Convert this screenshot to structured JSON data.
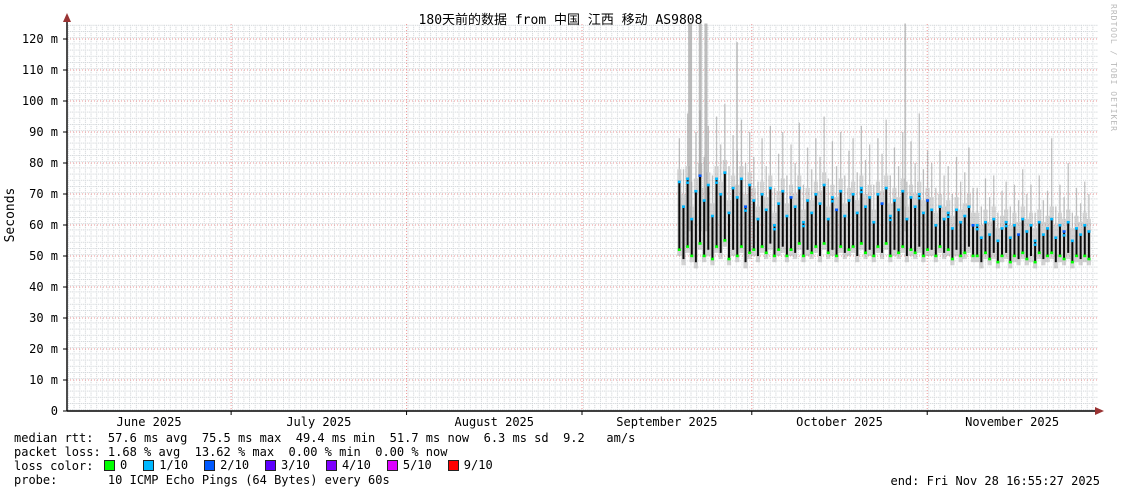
{
  "header": {
    "title": "180天前的数据 from 中国 江西 移动 AS9808"
  },
  "watermark": "RRDTOOL / TOBI OETIKER",
  "chart_data": {
    "type": "smokeping_latency_smoke_chart",
    "title": "180天前的数据 from 中国 江西 移动 AS9808",
    "ylabel": "Seconds",
    "ylim": [
      0,
      125
    ],
    "y_unit": "ms",
    "grid": "dotted minor grid, red dashed major lines every 10 ms",
    "y_ticks": [
      {
        "v": 0,
        "label": "0"
      },
      {
        "v": 10,
        "label": "10 m"
      },
      {
        "v": 20,
        "label": "20 m"
      },
      {
        "v": 30,
        "label": "30 m"
      },
      {
        "v": 40,
        "label": "40 m"
      },
      {
        "v": 50,
        "label": "50 m"
      },
      {
        "v": 60,
        "label": "60 m"
      },
      {
        "v": 70,
        "label": "70 m"
      },
      {
        "v": 80,
        "label": "80 m"
      },
      {
        "v": 90,
        "label": "90 m"
      },
      {
        "v": 100,
        "label": "100 m"
      },
      {
        "v": 110,
        "label": "110 m"
      },
      {
        "v": 120,
        "label": "120 m"
      }
    ],
    "x_axis": {
      "unit": "days since 2025-06-01",
      "range": [
        1,
        183
      ],
      "months": [
        {
          "label": "June 2025",
          "start_day": 0,
          "mid_day": 15.5,
          "line": false
        },
        {
          "label": "July 2025",
          "start_day": 30,
          "mid_day": 45.5,
          "line": true
        },
        {
          "label": "August 2025",
          "start_day": 61,
          "mid_day": 76.5,
          "line": true
        },
        {
          "label": "September 2025",
          "start_day": 92,
          "mid_day": 107,
          "line": true
        },
        {
          "label": "October 2025",
          "start_day": 122,
          "mid_day": 137.5,
          "line": true
        },
        {
          "label": "November 2025",
          "start_day": 153,
          "mid_day": 168,
          "line": true
        }
      ]
    },
    "series": {
      "note": "sampled smoke/median values in ms, data visible only from ~Sep 18 to Nov 28",
      "day_start": 109.2,
      "day_step": 0.731,
      "median_hi": [
        74,
        66,
        75,
        62,
        71,
        76,
        68,
        73,
        63,
        75,
        70,
        77,
        64,
        72,
        69,
        75,
        66,
        73,
        68,
        62,
        70,
        65,
        72,
        60,
        67,
        71,
        63,
        69,
        66,
        72,
        61,
        68,
        64,
        70,
        67,
        73,
        62,
        69,
        65,
        71,
        63,
        68,
        70,
        64,
        72,
        66,
        69,
        61,
        70,
        67,
        72,
        63,
        68,
        65,
        71,
        62,
        69,
        66,
        70,
        64,
        68,
        65,
        60,
        66,
        62,
        64,
        59,
        65,
        61,
        63,
        66,
        60,
        60,
        56,
        61,
        57,
        62,
        55,
        59,
        61,
        56,
        60,
        57,
        62,
        58,
        60,
        55,
        61,
        57,
        59,
        62,
        56,
        60,
        58,
        61,
        55,
        59,
        57,
        60,
        58
      ],
      "median_lo": [
        52,
        49,
        53,
        50,
        48,
        54,
        50,
        52,
        49,
        53,
        51,
        55,
        49,
        52,
        50,
        53,
        48,
        51,
        52,
        50,
        53,
        51,
        54,
        50,
        52,
        53,
        50,
        52,
        51,
        54,
        50,
        52,
        51,
        53,
        50,
        54,
        51,
        52,
        50,
        53,
        51,
        52,
        53,
        50,
        54,
        51,
        52,
        50,
        53,
        51,
        54,
        50,
        52,
        51,
        53,
        50,
        52,
        51,
        53,
        50,
        52,
        52,
        50,
        53,
        51,
        52,
        49,
        52,
        50,
        51,
        53,
        50,
        50,
        48,
        51,
        49,
        51,
        48,
        50,
        51,
        48,
        50,
        49,
        51,
        49,
        50,
        48,
        51,
        49,
        50,
        51,
        48,
        50,
        49,
        51,
        48,
        50,
        49,
        50,
        49
      ],
      "smoke_hi": [
        88,
        78,
        96,
        74,
        90,
        97,
        82,
        92,
        76,
        95,
        86,
        99,
        79,
        89,
        84,
        94,
        80,
        90,
        82,
        74,
        88,
        79,
        92,
        72,
        83,
        90,
        76,
        86,
        80,
        93,
        73,
        85,
        78,
        88,
        82,
        95,
        75,
        87,
        79,
        90,
        76,
        84,
        88,
        77,
        92,
        81,
        86,
        73,
        88,
        83,
        94,
        76,
        85,
        79,
        90,
        74,
        87,
        80,
        96,
        78,
        84,
        80,
        72,
        84,
        76,
        79,
        70,
        82,
        74,
        77,
        85,
        72,
        72,
        66,
        75,
        69,
        76,
        64,
        71,
        74,
        66,
        73,
        68,
        78,
        70,
        73,
        64,
        76,
        68,
        71,
        88,
        66,
        73,
        69,
        80,
        64,
        72,
        67,
        74,
        70
      ],
      "smoke_lo": [
        50,
        47,
        51,
        48,
        46,
        52,
        48,
        50,
        47,
        51,
        49,
        53,
        47,
        50,
        48,
        51,
        46,
        49,
        50,
        48,
        51,
        49,
        52,
        48,
        50,
        51,
        48,
        50,
        49,
        52,
        48,
        50,
        49,
        51,
        48,
        52,
        49,
        50,
        48,
        51,
        49,
        50,
        51,
        48,
        52,
        49,
        50,
        48,
        51,
        49,
        52,
        48,
        50,
        49,
        51,
        48,
        50,
        49,
        51,
        48,
        50,
        50,
        48,
        51,
        49,
        50,
        47,
        50,
        48,
        49,
        51,
        48,
        48,
        46,
        49,
        47,
        49,
        46,
        48,
        49,
        46,
        48,
        47,
        49,
        47,
        48,
        46,
        49,
        47,
        48,
        49,
        46,
        48,
        47,
        49,
        46,
        48,
        47,
        48,
        47
      ]
    },
    "spikes": [
      {
        "day": 111.1,
        "top_ms": 125,
        "w": 4
      },
      {
        "day": 112.9,
        "top_ms": 125,
        "w": 3
      },
      {
        "day": 113.9,
        "top_ms": 125,
        "w": 3
      },
      {
        "day": 119.4,
        "top_ms": 119,
        "w": 1.5
      },
      {
        "day": 149.1,
        "top_ms": 125,
        "w": 1.5
      }
    ],
    "stats": {
      "median_avg_ms": 57.6,
      "median_max_ms": 75.5,
      "median_min_ms": 49.4,
      "median_now_ms": 51.7,
      "sd_ms": 6.3,
      "am_s": 9.2,
      "loss_avg_pct": 1.68,
      "loss_max_pct": 13.62,
      "loss_min_pct": 0.0,
      "loss_now_pct": 0.0
    },
    "colors": {
      "smoke": "#999999",
      "median": "#0a0a0a",
      "grid_major": "#f09898",
      "grid_minor": "#c9ced2",
      "axis": "#000000",
      "arrow": "#993333",
      "loss0": "#00ff00",
      "loss1": "#00b8ff",
      "loss2": "#0059ff"
    }
  },
  "footer": {
    "median_line": "median rtt:  57.6 ms avg  75.5 ms max  49.4 ms min  51.7 ms now  6.3 ms sd  9.2   am/s",
    "loss_line": "packet loss: 1.68 % avg  13.62 % max  0.00 % min  0.00 % now",
    "loss_color_label": "loss color:",
    "loss_items": [
      {
        "label": "0",
        "color": "#00ff00"
      },
      {
        "label": "1/10",
        "color": "#00b8ff"
      },
      {
        "label": "2/10",
        "color": "#0059ff"
      },
      {
        "label": "3/10",
        "color": "#5e00ff"
      },
      {
        "label": "4/10",
        "color": "#7e00ff"
      },
      {
        "label": "5/10",
        "color": "#dd00ff"
      },
      {
        "label": "9/10",
        "color": "#ff0000"
      }
    ],
    "probe_line": "probe:       10 ICMP Echo Pings (64 Bytes) every 60s",
    "end_line": "end: Fri Nov 28 16:55:27 2025"
  }
}
